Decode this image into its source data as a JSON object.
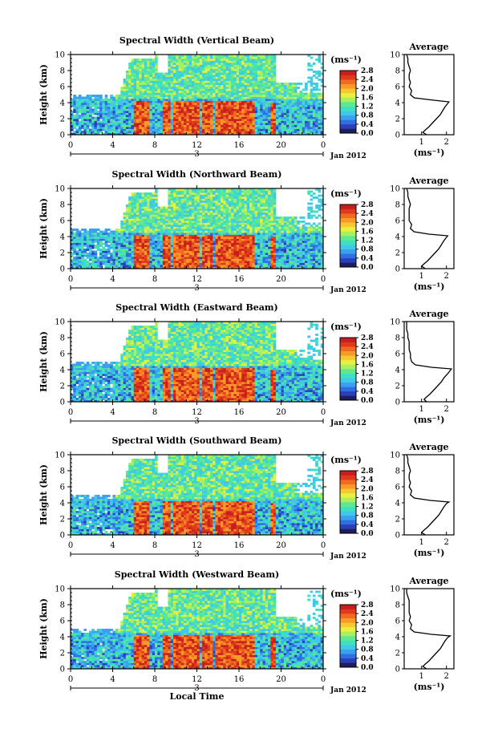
{
  "chart_data": [
    {
      "type": "heatmap",
      "title": "Spectral Width (Vertical Beam)",
      "ylabel": "Height (km)",
      "ylim": [
        0,
        10
      ],
      "yticks": [
        "0",
        "2",
        "4",
        "6",
        "8",
        "10"
      ],
      "xlim": [
        0,
        24
      ],
      "xticks": [
        "0",
        "4",
        "8",
        "12",
        "16",
        "20",
        "0"
      ],
      "date_mark": "3",
      "date_label": "Jan 2012",
      "colorbar_unit": "(ms⁻¹)",
      "colorbar_ticks": [
        "0.0",
        "0.4",
        "0.8",
        "1.2",
        "1.6",
        "2.0",
        "2.4",
        "2.8"
      ],
      "profile": {
        "title": "Average",
        "xlabel": "(ms⁻¹)",
        "xticks": [
          "1",
          "2"
        ],
        "xlim": [
          0.3,
          2.3
        ],
        "heights": [
          0.0,
          0.3,
          0.6,
          1.0,
          1.5,
          2.0,
          2.5,
          3.0,
          3.5,
          3.9,
          4.1,
          4.3,
          4.6,
          5.0,
          5.5,
          6.0,
          6.5,
          7.0,
          7.5,
          8.0,
          8.5,
          9.0,
          9.5,
          10.0
        ],
        "values": [
          1.2,
          1.05,
          1.15,
          1.3,
          1.45,
          1.6,
          1.75,
          1.85,
          1.95,
          2.05,
          2.1,
          1.5,
          0.7,
          0.55,
          0.6,
          0.5,
          0.55,
          0.5,
          0.5,
          0.55,
          0.5,
          0.45,
          0.45,
          0.4
        ]
      }
    },
    {
      "type": "heatmap",
      "title": "Spectral Width (Northward Beam)",
      "ylabel": "Height (km)",
      "ylim": [
        0,
        10
      ],
      "yticks": [
        "0",
        "2",
        "4",
        "6",
        "8",
        "10"
      ],
      "xlim": [
        0,
        24
      ],
      "xticks": [
        "0",
        "4",
        "8",
        "12",
        "16",
        "20",
        "0"
      ],
      "date_mark": "3",
      "date_label": "Jan 2012",
      "colorbar_unit": "(ms⁻¹)",
      "colorbar_ticks": [
        "0.0",
        "0.4",
        "0.8",
        "1.2",
        "1.6",
        "2.0",
        "2.4",
        "2.8"
      ],
      "profile": {
        "title": "Average",
        "xlabel": "(ms⁻¹)",
        "xticks": [
          "1",
          "2"
        ],
        "xlim": [
          0.3,
          2.3
        ],
        "heights": [
          0.0,
          0.3,
          0.6,
          1.0,
          1.5,
          2.0,
          2.5,
          3.0,
          3.5,
          3.9,
          4.1,
          4.3,
          4.6,
          5.0,
          5.5,
          6.0,
          6.5,
          7.0,
          7.5,
          8.0,
          8.5,
          9.0,
          9.5,
          10.0
        ],
        "values": [
          1.15,
          1.0,
          1.1,
          1.25,
          1.4,
          1.55,
          1.7,
          1.8,
          1.9,
          2.0,
          2.05,
          1.3,
          0.7,
          0.55,
          0.6,
          0.5,
          0.5,
          0.5,
          0.5,
          0.55,
          0.5,
          0.45,
          0.45,
          0.4
        ]
      }
    },
    {
      "type": "heatmap",
      "title": "Spectral Width (Eastward Beam)",
      "ylabel": "Height (km)",
      "ylim": [
        0,
        10
      ],
      "yticks": [
        "0",
        "2",
        "4",
        "6",
        "8",
        "10"
      ],
      "xlim": [
        0,
        24
      ],
      "xticks": [
        "0",
        "4",
        "8",
        "12",
        "16",
        "20",
        "0"
      ],
      "date_mark": "3",
      "date_label": "Jan 2012",
      "colorbar_unit": "(ms⁻¹)",
      "colorbar_ticks": [
        "0.0",
        "0.4",
        "0.8",
        "1.2",
        "1.6",
        "2.0",
        "2.4",
        "2.8"
      ],
      "profile": {
        "title": "Average",
        "xlabel": "(ms⁻¹)",
        "xticks": [
          "1",
          "2"
        ],
        "xlim": [
          0.3,
          2.3
        ],
        "heights": [
          0.0,
          0.3,
          0.6,
          1.0,
          1.5,
          2.0,
          2.5,
          3.0,
          3.5,
          3.9,
          4.1,
          4.3,
          4.6,
          5.0,
          5.5,
          6.0,
          6.5,
          7.0,
          7.5,
          8.0,
          8.5,
          9.0,
          9.5,
          10.0
        ],
        "values": [
          1.2,
          1.1,
          1.2,
          1.35,
          1.5,
          1.65,
          1.8,
          1.9,
          2.05,
          2.15,
          2.2,
          1.4,
          0.75,
          0.6,
          0.55,
          0.55,
          0.5,
          0.5,
          0.5,
          0.45,
          0.45,
          0.4,
          0.4,
          0.4
        ]
      }
    },
    {
      "type": "heatmap",
      "title": "Spectral Width (Southward Beam)",
      "ylabel": "Height (km)",
      "ylim": [
        0,
        10
      ],
      "yticks": [
        "0",
        "2",
        "4",
        "6",
        "8",
        "10"
      ],
      "xlim": [
        0,
        24
      ],
      "xticks": [
        "0",
        "4",
        "8",
        "12",
        "16",
        "20",
        "0"
      ],
      "date_mark": "3",
      "date_label": "Jan 2012",
      "colorbar_unit": "(ms⁻¹)",
      "colorbar_ticks": [
        "0.0",
        "0.4",
        "0.8",
        "1.2",
        "1.6",
        "2.0",
        "2.4",
        "2.8"
      ],
      "profile": {
        "title": "Average",
        "xlabel": "(ms⁻¹)",
        "xticks": [
          "1",
          "2"
        ],
        "xlim": [
          0.3,
          2.3
        ],
        "heights": [
          0.0,
          0.3,
          0.6,
          1.0,
          1.5,
          2.0,
          2.5,
          3.0,
          3.5,
          3.9,
          4.1,
          4.3,
          4.6,
          5.0,
          5.5,
          6.0,
          6.5,
          7.0,
          7.5,
          8.0,
          8.5,
          9.0,
          9.5,
          10.0
        ],
        "values": [
          1.15,
          1.0,
          1.1,
          1.25,
          1.4,
          1.55,
          1.7,
          1.8,
          1.9,
          2.0,
          2.1,
          1.35,
          0.7,
          0.55,
          0.6,
          0.5,
          0.55,
          0.5,
          0.5,
          0.55,
          0.5,
          0.45,
          0.45,
          0.4
        ]
      }
    },
    {
      "type": "heatmap",
      "title": "Spectral Width (Westward Beam)",
      "ylabel": "Height (km)",
      "ylim": [
        0,
        10
      ],
      "yticks": [
        "0",
        "2",
        "4",
        "6",
        "8",
        "10"
      ],
      "xlim": [
        0,
        24
      ],
      "xticks": [
        "0",
        "4",
        "8",
        "12",
        "16",
        "20",
        "0"
      ],
      "date_mark": "3",
      "date_label": "Jan 2012",
      "xlabel": "Local Time",
      "colorbar_unit": "(ms⁻¹)",
      "colorbar_ticks": [
        "0.0",
        "0.4",
        "0.8",
        "1.2",
        "1.6",
        "2.0",
        "2.4",
        "2.8"
      ],
      "profile": {
        "title": "Average",
        "xlabel": "(ms⁻¹)",
        "xticks": [
          "1",
          "2"
        ],
        "xlim": [
          0.3,
          2.3
        ],
        "heights": [
          0.0,
          0.3,
          0.6,
          1.0,
          1.5,
          2.0,
          2.5,
          3.0,
          3.5,
          3.9,
          4.1,
          4.3,
          4.6,
          5.0,
          5.5,
          6.0,
          6.5,
          7.0,
          7.5,
          8.0,
          8.5,
          9.0,
          9.5,
          10.0
        ],
        "values": [
          1.2,
          1.05,
          1.15,
          1.3,
          1.45,
          1.6,
          1.75,
          1.85,
          1.95,
          2.05,
          2.15,
          1.4,
          0.7,
          0.55,
          0.6,
          0.5,
          0.55,
          0.5,
          0.5,
          0.5,
          0.5,
          0.45,
          0.4,
          0.4
        ]
      }
    }
  ],
  "colormap": [
    "#1e1e5a",
    "#2a3fb8",
    "#2f6fe0",
    "#3aa0f0",
    "#40c8e6",
    "#3fe0c0",
    "#60e890",
    "#a8f060",
    "#e8f040",
    "#f8c830",
    "#f89a28",
    "#f06a20",
    "#e03a1c",
    "#c81e1e"
  ]
}
